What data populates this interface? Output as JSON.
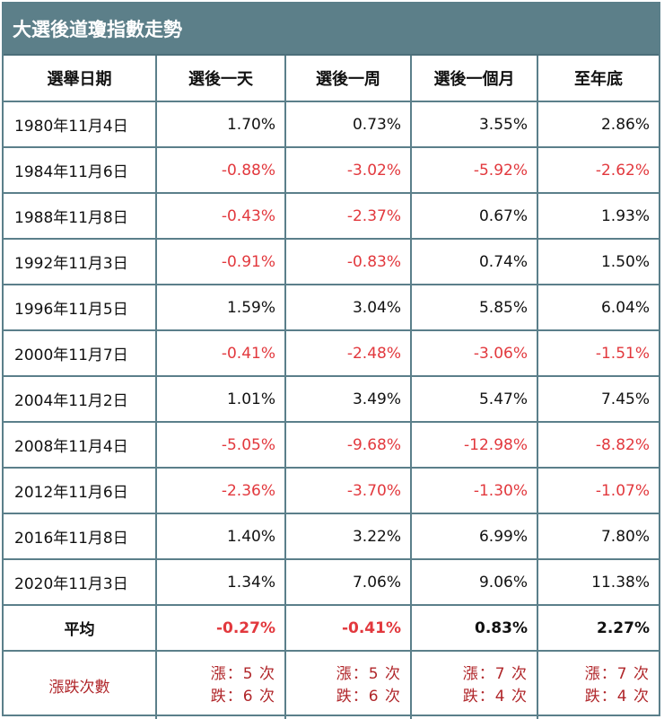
{
  "title": "大選後道瓊指數走勢",
  "headers": [
    "選舉日期",
    "選後一天",
    "選後一周",
    "選後一個月",
    "至年底"
  ],
  "rows": [
    {
      "date": "1980年11月4日",
      "values": [
        "1.70%",
        "0.73%",
        "3.55%",
        "2.86%"
      ],
      "negative": [
        false,
        false,
        false,
        false
      ]
    },
    {
      "date": "1984年11月6日",
      "values": [
        "-0.88%",
        "-3.02%",
        "-5.92%",
        "-2.62%"
      ],
      "negative": [
        true,
        true,
        true,
        true
      ]
    },
    {
      "date": "1988年11月8日",
      "values": [
        "-0.43%",
        "-2.37%",
        "0.67%",
        "1.93%"
      ],
      "negative": [
        true,
        true,
        false,
        false
      ]
    },
    {
      "date": "1992年11月3日",
      "values": [
        "-0.91%",
        "-0.83%",
        "0.74%",
        "1.50%"
      ],
      "negative": [
        true,
        true,
        false,
        false
      ]
    },
    {
      "date": "1996年11月5日",
      "values": [
        "1.59%",
        "3.04%",
        "5.85%",
        "6.04%"
      ],
      "negative": [
        false,
        false,
        false,
        false
      ]
    },
    {
      "date": "2000年11月7日",
      "values": [
        "-0.41%",
        "-2.48%",
        "-3.06%",
        "-1.51%"
      ],
      "negative": [
        true,
        true,
        true,
        true
      ]
    },
    {
      "date": "2004年11月2日",
      "values": [
        "1.01%",
        "3.49%",
        "5.47%",
        "7.45%"
      ],
      "negative": [
        false,
        false,
        false,
        false
      ]
    },
    {
      "date": "2008年11月4日",
      "values": [
        "-5.05%",
        "-9.68%",
        "-12.98%",
        "-8.82%"
      ],
      "negative": [
        true,
        true,
        true,
        true
      ]
    },
    {
      "date": "2012年11月6日",
      "values": [
        "-2.36%",
        "-3.70%",
        "-1.30%",
        "-1.07%"
      ],
      "negative": [
        true,
        true,
        true,
        true
      ]
    },
    {
      "date": "2016年11月8日",
      "values": [
        "1.40%",
        "3.22%",
        "6.99%",
        "7.80%"
      ],
      "negative": [
        false,
        false,
        false,
        false
      ]
    },
    {
      "date": "2020年11月3日",
      "values": [
        "1.34%",
        "7.06%",
        "9.06%",
        "11.38%"
      ],
      "negative": [
        false,
        false,
        false,
        false
      ]
    }
  ],
  "average": {
    "label": "平均",
    "values": [
      "-0.27%",
      "-0.41%",
      "0.83%",
      "2.27%"
    ],
    "negative": [
      true,
      true,
      false,
      false
    ]
  },
  "counts": {
    "label": "漲跌次數",
    "up": [
      "漲：5 次",
      "漲：5 次",
      "漲：7 次",
      "漲：7 次"
    ],
    "down": [
      "跌：6 次",
      "跌：6 次",
      "跌：4 次",
      "跌：4 次"
    ]
  },
  "colors": {
    "header_bg": "#5c7f89",
    "border": "#5b7f8a",
    "negative": "#e2383d",
    "count_text": "#b0262a"
  }
}
